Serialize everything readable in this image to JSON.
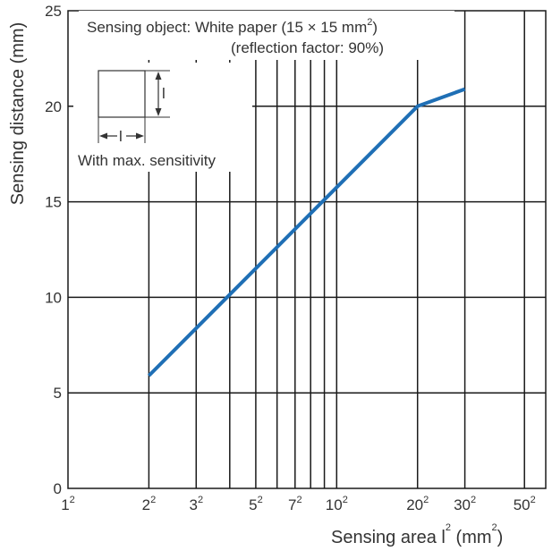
{
  "chart_data": {
    "type": "line",
    "x_scale": "log",
    "x_quantity": "sensing area l^2 (mm^2)",
    "x_ticks": [
      {
        "base": "1",
        "exp": "2",
        "value": 1
      },
      {
        "base": "2",
        "exp": "2",
        "value": 4
      },
      {
        "base": "3",
        "exp": "2",
        "value": 9
      },
      {
        "base": "5",
        "exp": "2",
        "value": 25
      },
      {
        "base": "7",
        "exp": "2",
        "value": 49
      },
      {
        "base": "10",
        "exp": "2",
        "value": 100
      },
      {
        "base": "20",
        "exp": "2",
        "value": 400
      },
      {
        "base": "30",
        "exp": "2",
        "value": 900
      },
      {
        "base": "50",
        "exp": "2",
        "value": 2500
      }
    ],
    "x_minor_gridlines": [
      16,
      36,
      64,
      81
    ],
    "xlim": [
      1,
      3600
    ],
    "ylim": [
      0,
      25
    ],
    "y_ticks": [
      0,
      5,
      10,
      15,
      20,
      25
    ],
    "grid": true,
    "series": [
      {
        "color": "#1f6fb5",
        "points": [
          {
            "x": 4,
            "y": 5.9
          },
          {
            "x": 400,
            "y": 20.0
          },
          {
            "x": 900,
            "y": 20.9
          }
        ]
      }
    ],
    "ylabel": "Sensing distance (mm)",
    "xlabel": {
      "prefix": "Sensing area  l",
      "exp": "2",
      "open": " (mm",
      "close": ")"
    },
    "annotations": {
      "title_line1": "Sensing object: White paper (15 × 15 mm",
      "title_line1_exp": "2",
      "title_line1_end": ")",
      "title_line2": "(reflection factor: 90%)",
      "inset_dim_label": "l",
      "inset_caption": "With max. sensitivity"
    }
  },
  "colors": {
    "grid": "#1a1a1a",
    "series": "#1f6fb5",
    "text": "#333333"
  }
}
